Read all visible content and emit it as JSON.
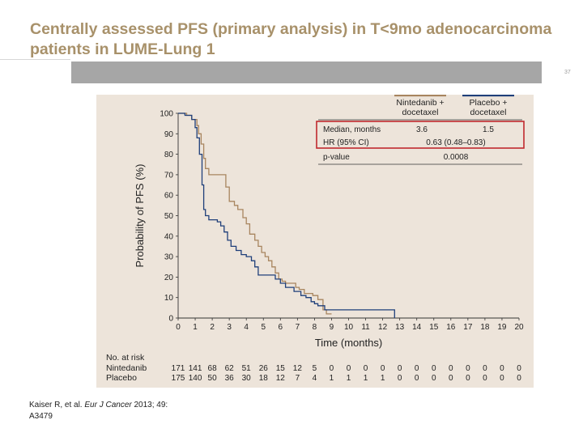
{
  "slide": {
    "title": "Centrally assessed PFS (primary analysis) in T<9mo adenocarcinoma patients in LUME-Lung 1",
    "page_number": "37",
    "citation_prefix": "Kaiser R, et al. ",
    "citation_journal": "Eur J Cancer",
    "citation_suffix": " 2013; 49: A3479",
    "colors": {
      "title": "#a8916a",
      "nintedanib": "#a8855f",
      "placebo": "#1f3f7a",
      "highlight_box": "#c0282d",
      "panel": "#ede4da"
    }
  },
  "chart_data": {
    "type": "line",
    "step": true,
    "ylabel": "Probability of PFS (%)",
    "xlabel": "Time (months)",
    "xlim": [
      0,
      20
    ],
    "ylim": [
      0,
      100
    ],
    "xticks": [
      0,
      1,
      2,
      3,
      4,
      5,
      6,
      7,
      8,
      9,
      10,
      11,
      12,
      13,
      14,
      15,
      16,
      17,
      18,
      19,
      20
    ],
    "yticks": [
      0,
      10,
      20,
      30,
      40,
      50,
      60,
      70,
      80,
      90,
      100
    ],
    "series": [
      {
        "name": "Nintedanib + docetaxel",
        "name_line1": "Nintedanib +",
        "name_line2": "docetaxel",
        "color": "#a8855f",
        "x": [
          0,
          0.5,
          0.8,
          1.1,
          1.2,
          1.35,
          1.5,
          1.6,
          1.8,
          2.6,
          2.8,
          3.0,
          3.3,
          3.5,
          3.8,
          4.0,
          4.2,
          4.5,
          4.7,
          4.9,
          5.1,
          5.3,
          5.5,
          5.7,
          5.9,
          6.1,
          6.3,
          6.6,
          6.9,
          7.1,
          7.4,
          7.7,
          7.9,
          8.2,
          8.5,
          8.7,
          9.0
        ],
        "y": [
          100,
          99,
          97,
          94,
          90,
          85,
          78,
          73,
          70,
          70,
          64,
          57,
          55,
          53,
          49,
          46,
          41,
          38,
          35,
          32,
          30,
          28,
          25,
          22,
          19,
          18,
          17,
          17,
          15,
          14,
          12,
          12,
          11,
          9,
          4,
          2,
          2
        ]
      },
      {
        "name": "Placebo + docetaxel",
        "name_line1": "Placebo +",
        "name_line2": "docetaxel",
        "color": "#1f3f7a",
        "x": [
          0,
          0.4,
          0.8,
          1.0,
          1.1,
          1.25,
          1.4,
          1.5,
          1.6,
          1.8,
          2.3,
          2.5,
          2.7,
          2.9,
          3.1,
          3.4,
          3.7,
          4.0,
          4.3,
          4.5,
          4.7,
          5.5,
          5.7,
          6.0,
          6.3,
          6.5,
          6.8,
          7.0,
          7.2,
          7.5,
          7.8,
          8.0,
          8.2,
          8.6,
          12.7
        ],
        "y": [
          100,
          99,
          97,
          93,
          88,
          80,
          65,
          53,
          50,
          48,
          47,
          45,
          42,
          38,
          35,
          33,
          31,
          30,
          28,
          25,
          21,
          21,
          19,
          17,
          15,
          15,
          13,
          13,
          11,
          10,
          8,
          7,
          6,
          4,
          0
        ]
      }
    ],
    "table": {
      "rows": [
        {
          "label": "Median, months",
          "nintedanib": "3.6",
          "placebo": "1.5"
        },
        {
          "label": "HR (95% CI)",
          "value": "0.63 (0.48–0.83)"
        },
        {
          "label": "p-value",
          "value": "0.0008"
        }
      ]
    },
    "risk_table": {
      "header": "No. at risk",
      "rows": [
        {
          "label": "Nintedanib",
          "values": [
            "171",
            "141",
            "68",
            "62",
            "51",
            "26",
            "15",
            "12",
            "5",
            "0",
            "0",
            "0",
            "0",
            "0",
            "0",
            "0",
            "0",
            "0",
            "0",
            "0",
            "0"
          ]
        },
        {
          "label": "Placebo",
          "values": [
            "175",
            "140",
            "50",
            "36",
            "30",
            "18",
            "12",
            "7",
            "4",
            "1",
            "1",
            "1",
            "1",
            "0",
            "0",
            "0",
            "0",
            "0",
            "0",
            "0",
            "0"
          ]
        }
      ]
    }
  }
}
